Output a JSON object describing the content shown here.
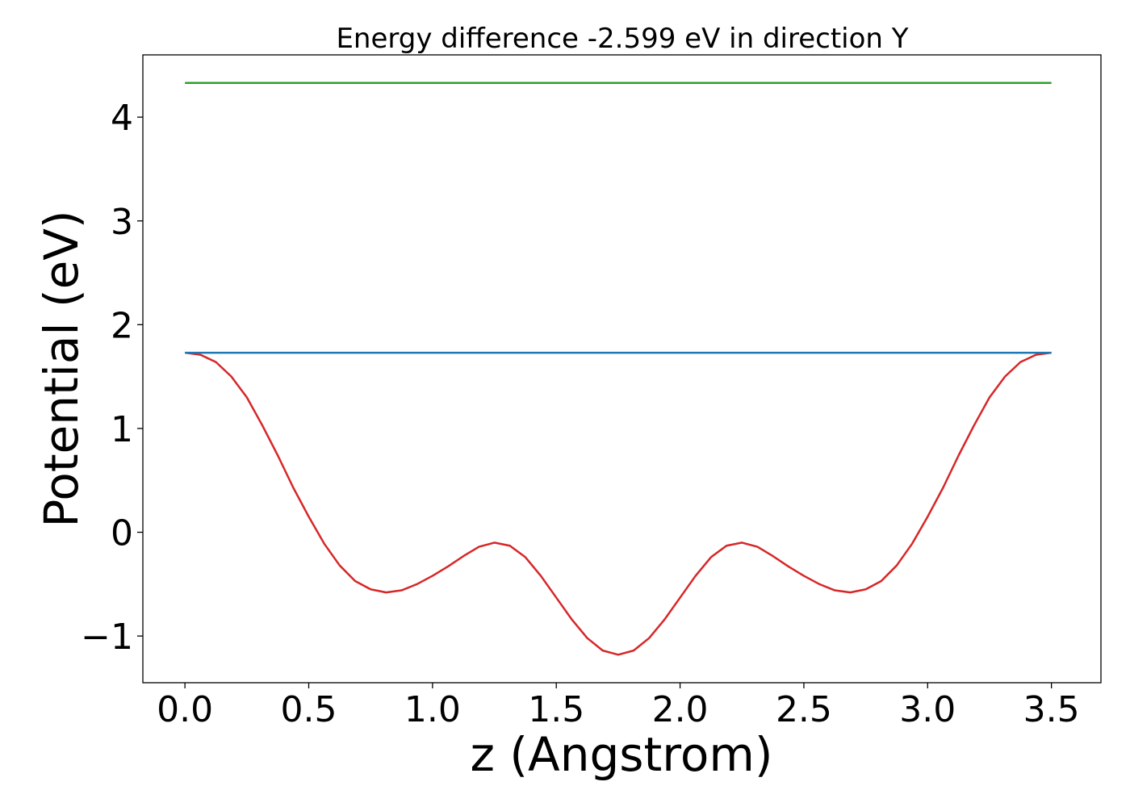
{
  "chart_data": {
    "type": "line",
    "title": "Energy difference -2.599 eV in direction Y",
    "xlabel": "z (Angstrom)",
    "ylabel": "Potential (eV)",
    "xlim": [
      -0.17,
      3.7
    ],
    "ylim": [
      -1.45,
      4.6
    ],
    "x_ticks": [
      0.0,
      0.5,
      1.0,
      1.5,
      2.0,
      2.5,
      3.0,
      3.5
    ],
    "x_tick_labels": [
      "0.0",
      "0.5",
      "1.0",
      "1.5",
      "2.0",
      "2.5",
      "3.0",
      "3.5"
    ],
    "y_ticks": [
      -1,
      0,
      1,
      2,
      3,
      4
    ],
    "y_tick_labels": [
      "−1",
      "0",
      "1",
      "2",
      "3",
      "4"
    ],
    "grid": false,
    "series": [
      {
        "color": "#d62728",
        "x": [
          0.0,
          0.0625,
          0.125,
          0.1875,
          0.25,
          0.3125,
          0.375,
          0.4375,
          0.5,
          0.5625,
          0.625,
          0.6875,
          0.75,
          0.8125,
          0.875,
          0.9375,
          1.0,
          1.0625,
          1.125,
          1.1875,
          1.25,
          1.3125,
          1.375,
          1.4375,
          1.5,
          1.5625,
          1.625,
          1.6875,
          1.75,
          1.8125,
          1.875,
          1.9375,
          2.0,
          2.0625,
          2.125,
          2.1875,
          2.25,
          2.3125,
          2.375,
          2.4375,
          2.5,
          2.5625,
          2.625,
          2.6875,
          2.75,
          2.8125,
          2.875,
          2.9375,
          3.0,
          3.0625,
          3.125,
          3.1875,
          3.25,
          3.3125,
          3.375,
          3.4375,
          3.5
        ],
        "y": [
          1.73,
          1.71,
          1.64,
          1.5,
          1.3,
          1.03,
          0.74,
          0.43,
          0.15,
          -0.11,
          -0.32,
          -0.47,
          -0.55,
          -0.58,
          -0.56,
          -0.5,
          -0.42,
          -0.33,
          -0.23,
          -0.14,
          -0.1,
          -0.13,
          -0.24,
          -0.42,
          -0.63,
          -0.84,
          -1.02,
          -1.14,
          -1.18,
          -1.14,
          -1.02,
          -0.84,
          -0.63,
          -0.42,
          -0.24,
          -0.13,
          -0.1,
          -0.14,
          -0.23,
          -0.33,
          -0.42,
          -0.5,
          -0.56,
          -0.58,
          -0.55,
          -0.47,
          -0.32,
          -0.11,
          0.15,
          0.43,
          0.74,
          1.03,
          1.3,
          1.5,
          1.64,
          1.71,
          1.73
        ]
      },
      {
        "color": "#1f77b4",
        "x": [
          0.0,
          3.5
        ],
        "y": [
          1.73,
          1.73
        ]
      },
      {
        "color": "#2ca02c",
        "x": [
          0.0,
          3.5
        ],
        "y": [
          4.33,
          4.33
        ]
      }
    ]
  }
}
